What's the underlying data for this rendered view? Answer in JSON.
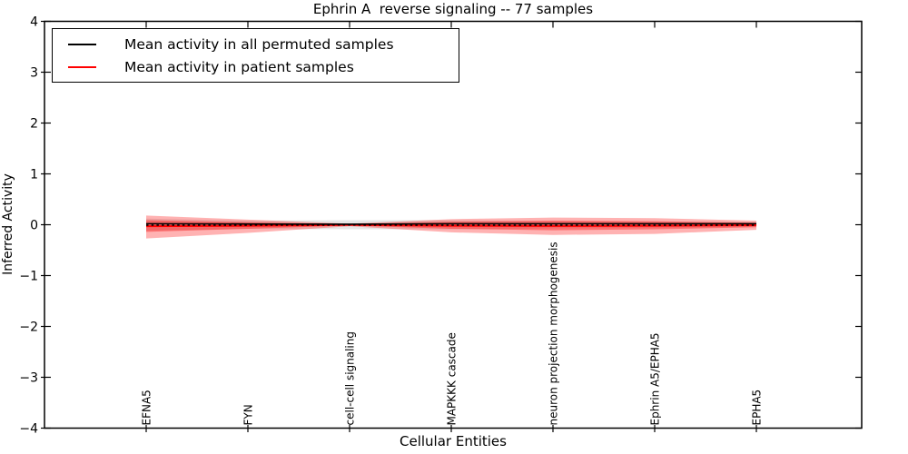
{
  "title": "Ephrin A  reverse signaling -- 77 samples",
  "axes": {
    "xlabel": "Cellular Entities",
    "ylabel": "Inferred Activity",
    "yticks": [
      "4",
      "3",
      "2",
      "1",
      "0",
      "−1",
      "−2",
      "−3",
      "−4"
    ]
  },
  "legend": {
    "items": [
      {
        "label": "Mean activity in all permuted samples",
        "color": "#000000"
      },
      {
        "label": "Mean activity in patient samples",
        "color": "#ff0000"
      }
    ]
  },
  "chart_data": {
    "type": "line",
    "title": "Ephrin A  reverse signaling -- 77 samples",
    "xlabel": "Cellular Entities",
    "ylabel": "Inferred Activity",
    "ylim": [
      -4,
      4
    ],
    "yticks": [
      4,
      3,
      2,
      1,
      0,
      -1,
      -2,
      -3,
      -4
    ],
    "grid": false,
    "legend_position": "upper left",
    "categories": [
      "EFNA5",
      "FYN",
      "cell-cell signaling",
      "MAPKKK cascade",
      "neuron projection morphogenesis",
      "Ephrin A5/EPHA5",
      "EPHA5"
    ],
    "series": [
      {
        "name": "Mean activity in all permuted samples",
        "color": "#000000",
        "style": "solid",
        "width": 1.6,
        "values": [
          0.02,
          0.015,
          0.01,
          0.02,
          0.02,
          0.02,
          0.02
        ]
      },
      {
        "name": "permuted-mean-dotted-overlay",
        "color": "#000000",
        "style": "dotted",
        "width": 1.5,
        "values": [
          -0.01,
          -0.008,
          -0.005,
          -0.01,
          -0.01,
          -0.01,
          -0.008
        ]
      },
      {
        "name": "Mean activity in patient samples",
        "color": "#ff0000",
        "style": "solid",
        "width": 2,
        "values": [
          -0.03,
          -0.02,
          -0.005,
          -0.02,
          -0.025,
          -0.02,
          -0.01
        ]
      }
    ],
    "bands": [
      {
        "name": "permuted-std-band",
        "color": "rgba(0,0,0,0.10)",
        "upper": [
          0.12,
          0.08,
          0.09,
          0.09,
          0.07,
          0.06,
          0.05
        ],
        "lower": [
          -0.12,
          -0.08,
          -0.09,
          -0.09,
          -0.07,
          -0.06,
          -0.05
        ]
      },
      {
        "name": "patient-std-band-outer",
        "color": "rgba(255,0,0,0.30)",
        "upper": [
          0.18,
          0.1,
          0.02,
          0.11,
          0.14,
          0.13,
          0.08
        ],
        "lower": [
          -0.27,
          -0.16,
          -0.03,
          -0.15,
          -0.2,
          -0.18,
          -0.1
        ]
      },
      {
        "name": "patient-std-band-inner",
        "color": "rgba(255,0,0,0.35)",
        "upper": [
          0.09,
          0.05,
          0.01,
          0.06,
          0.08,
          0.07,
          0.04
        ],
        "lower": [
          -0.14,
          -0.08,
          -0.015,
          -0.08,
          -0.11,
          -0.09,
          -0.05
        ]
      }
    ]
  }
}
